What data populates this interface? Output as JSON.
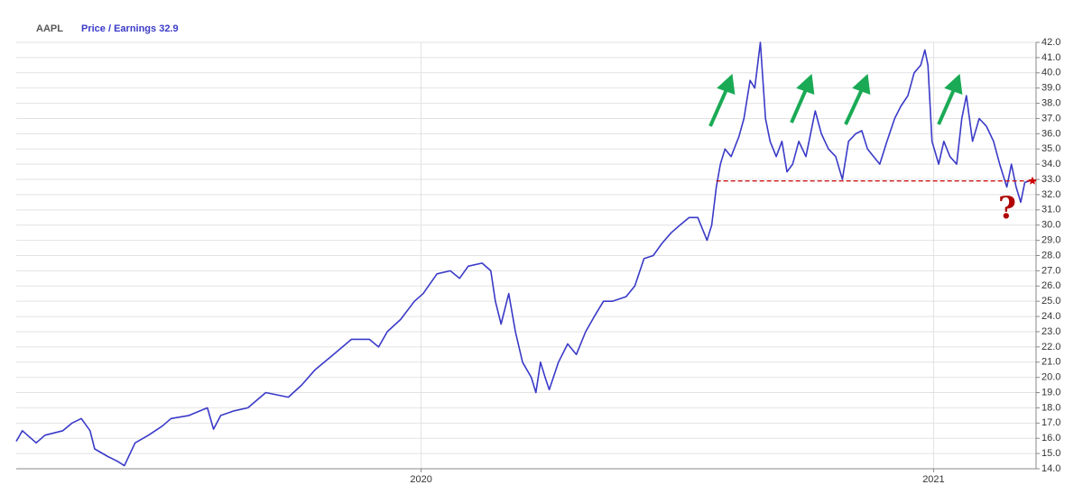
{
  "chart_data": {
    "type": "line",
    "ticker": "AAPL",
    "series": [
      {
        "name": "Price / Earnings 32.9",
        "color": "#3a3ac8",
        "x": [
          2019.21,
          2019.222,
          2019.249,
          2019.266,
          2019.301,
          2019.319,
          2019.337,
          2019.354,
          2019.363,
          2019.389,
          2019.407,
          2019.421,
          2019.442,
          2019.468,
          2019.495,
          2019.512,
          2019.547,
          2019.583,
          2019.595,
          2019.609,
          2019.635,
          2019.662,
          2019.697,
          2019.741,
          2019.767,
          2019.793,
          2019.829,
          2019.864,
          2019.899,
          2019.917,
          2019.934,
          2019.96,
          2019.987,
          2020.004,
          2020.031,
          2020.057,
          2020.075,
          2020.092,
          2020.119,
          2020.136,
          2020.145,
          2020.156,
          2020.171,
          2020.184,
          2020.198,
          2020.215,
          2020.224,
          2020.233,
          2020.242,
          2020.25,
          2020.268,
          2020.286,
          2020.303,
          2020.321,
          2020.338,
          2020.356,
          2020.373,
          2020.4,
          2020.417,
          2020.435,
          2020.453,
          2020.47,
          2020.488,
          2020.505,
          2020.523,
          2020.54,
          2020.558,
          2020.567,
          2020.576,
          2020.584,
          2020.593,
          2020.605,
          2020.62,
          2020.63,
          2020.642,
          2020.651,
          2020.662,
          2020.672,
          2020.681,
          2020.693,
          2020.704,
          2020.714,
          2020.725,
          2020.737,
          2020.751,
          2020.769,
          2020.781,
          2020.795,
          2020.809,
          2020.822,
          2020.834,
          2020.848,
          2020.86,
          2020.871,
          2020.883,
          2020.895,
          2020.909,
          2020.924,
          2020.936,
          2020.95,
          2020.962,
          2020.975,
          2020.983,
          2020.989,
          2020.997,
          2021.01,
          2021.02,
          2021.032,
          2021.045,
          2021.055,
          2021.064,
          2021.076,
          2021.089,
          2021.103,
          2021.117,
          2021.129,
          2021.143,
          2021.152,
          2021.161,
          2021.17,
          2021.178,
          2021.187
        ],
        "values": [
          15.8,
          16.5,
          15.7,
          16.2,
          16.5,
          17.0,
          17.3,
          16.5,
          15.3,
          14.8,
          14.5,
          14.2,
          15.7,
          16.2,
          16.8,
          17.3,
          17.5,
          18.0,
          16.6,
          17.5,
          17.8,
          18.0,
          19.0,
          18.7,
          19.5,
          20.5,
          21.5,
          22.5,
          22.5,
          22.0,
          23.0,
          23.8,
          25.0,
          25.5,
          26.8,
          27.0,
          26.5,
          27.3,
          27.5,
          27.0,
          25.0,
          23.5,
          25.5,
          23.0,
          21.0,
          20.0,
          19.0,
          21.0,
          20.0,
          19.2,
          21.0,
          22.2,
          21.5,
          23.0,
          24.0,
          25.0,
          25.0,
          25.3,
          26.0,
          27.8,
          28.0,
          28.8,
          29.5,
          30.0,
          30.5,
          30.5,
          29.0,
          30.0,
          32.5,
          34.0,
          35.0,
          34.5,
          35.8,
          37.0,
          39.5,
          39.0,
          42.0,
          37.0,
          35.5,
          34.5,
          35.5,
          33.5,
          34.0,
          35.5,
          34.5,
          37.5,
          36.0,
          35.0,
          34.5,
          33.0,
          35.5,
          36.0,
          36.2,
          35.0,
          34.5,
          34.0,
          35.5,
          37.0,
          37.8,
          38.5,
          40.0,
          40.5,
          41.5,
          40.5,
          35.5,
          34.0,
          35.5,
          34.5,
          34.0,
          37.0,
          38.5,
          35.5,
          37.0,
          36.5,
          35.5,
          34.0,
          32.5,
          34.0,
          32.5,
          31.5,
          32.8,
          32.9
        ]
      }
    ],
    "reference_line": {
      "value": 32.9,
      "from_x": 2020.576,
      "color": "#cc0000"
    },
    "annotation": "?",
    "xlim": [
      2019.21,
      2021.2
    ],
    "xticks": [
      2020,
      2021
    ],
    "ylim": [
      14,
      42
    ],
    "yticks": [
      {
        "value": 14,
        "label": "14.0"
      },
      {
        "value": 15,
        "label": "15.0"
      },
      {
        "value": 16,
        "label": "16.0"
      },
      {
        "value": 17,
        "label": "17.0"
      },
      {
        "value": 18,
        "label": "18.0"
      },
      {
        "value": 19,
        "label": "19.0"
      },
      {
        "value": 20,
        "label": "20.0"
      },
      {
        "value": 21,
        "label": "21.0"
      },
      {
        "value": 22,
        "label": "22.0"
      },
      {
        "value": 23,
        "label": "23.0"
      },
      {
        "value": 24,
        "label": "24.0"
      },
      {
        "value": 25,
        "label": "25.0"
      },
      {
        "value": 26,
        "label": "26.0"
      },
      {
        "value": 27,
        "label": "27.0"
      },
      {
        "value": 28,
        "label": "28.0"
      },
      {
        "value": 29,
        "label": "29.0"
      },
      {
        "value": 30,
        "label": "30.0"
      },
      {
        "value": 31,
        "label": "31.0"
      },
      {
        "value": 32,
        "label": "32.0"
      },
      {
        "value": 33,
        "label": "33.0"
      },
      {
        "value": 34,
        "label": "34.0"
      },
      {
        "value": 35,
        "label": "35.0"
      },
      {
        "value": 36,
        "label": "36.0"
      },
      {
        "value": 37,
        "label": "37.0"
      },
      {
        "value": 38,
        "label": "38.0"
      },
      {
        "value": 39,
        "label": "39.0"
      },
      {
        "value": 40,
        "label": "40.0"
      },
      {
        "value": 41,
        "label": "41.0"
      },
      {
        "value": 42,
        "label": "42.0"
      }
    ],
    "grid": true
  }
}
